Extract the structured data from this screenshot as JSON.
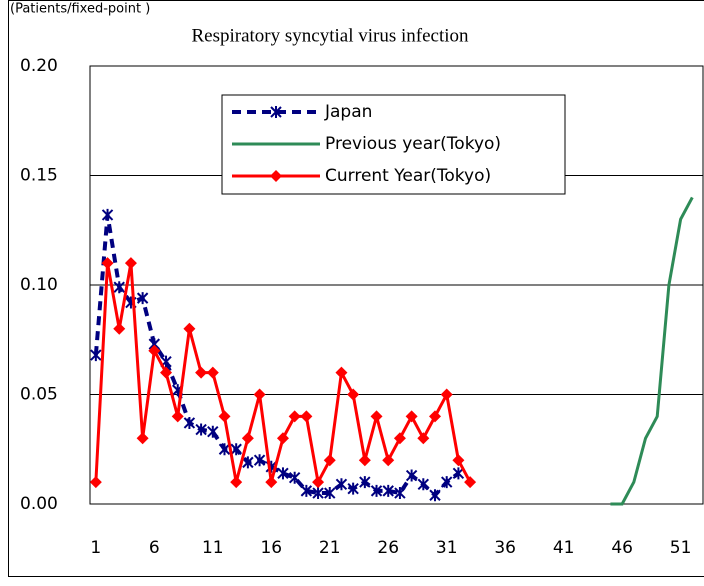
{
  "chart_data": {
    "type": "line",
    "title": "Respiratory syncytial virus infection",
    "y_label": "(Patients/fixed-point )",
    "x": [
      1,
      2,
      3,
      4,
      5,
      6,
      7,
      8,
      9,
      10,
      11,
      12,
      13,
      14,
      15,
      16,
      17,
      18,
      19,
      20,
      21,
      22,
      23,
      24,
      25,
      26,
      27,
      28,
      29,
      30,
      31,
      32,
      33,
      34,
      35,
      36,
      37,
      38,
      39,
      40,
      41,
      42,
      43,
      44,
      45,
      46,
      47,
      48,
      49,
      50,
      51,
      52
    ],
    "xlim": [
      0.5,
      53
    ],
    "xticks": [
      1,
      6,
      11,
      16,
      21,
      26,
      31,
      36,
      41,
      46,
      51
    ],
    "ylim": [
      0,
      0.2
    ],
    "yticks": [
      {
        "value": 0,
        "label": "0.00"
      },
      {
        "value": 0.05,
        "label": "0.05"
      },
      {
        "value": 0.1,
        "label": "0.10"
      },
      {
        "value": 0.15,
        "label": "0.15"
      },
      {
        "value": 0.2,
        "label": "0.20"
      }
    ],
    "grid": true,
    "series": [
      {
        "name": "Japan",
        "color": "#000080",
        "style": "dashed",
        "marker": "x",
        "values": [
          0.068,
          0.132,
          0.099,
          0.092,
          0.094,
          0.073,
          0.065,
          0.052,
          0.037,
          0.034,
          0.033,
          0.025,
          0.025,
          0.019,
          0.02,
          0.017,
          0.014,
          0.012,
          0.006,
          0.005,
          0.005,
          0.009,
          0.007,
          0.01,
          0.006,
          0.006,
          0.005,
          0.013,
          0.009,
          0.004,
          0.01,
          0.014,
          null,
          null,
          null,
          null,
          null,
          null,
          null,
          null,
          null,
          null,
          null,
          null,
          null,
          null,
          null,
          null,
          null,
          null,
          null,
          null
        ]
      },
      {
        "name": "Previous year(Tokyo)",
        "color": "#2e8b57",
        "style": "solid",
        "marker": "none",
        "values": [
          null,
          null,
          null,
          null,
          null,
          null,
          null,
          null,
          null,
          null,
          null,
          null,
          null,
          null,
          null,
          null,
          null,
          null,
          null,
          null,
          null,
          null,
          null,
          null,
          null,
          null,
          null,
          null,
          null,
          null,
          null,
          null,
          null,
          null,
          null,
          null,
          null,
          null,
          null,
          null,
          null,
          null,
          null,
          null,
          0,
          0,
          0.01,
          0.03,
          0.04,
          0.1,
          0.13,
          0.14
        ]
      },
      {
        "name": "Current Year(Tokyo)",
        "color": "#ff0000",
        "style": "solid",
        "marker": "diamond",
        "values": [
          0.01,
          0.11,
          0.08,
          0.11,
          0.03,
          0.07,
          0.06,
          0.04,
          0.08,
          0.06,
          0.06,
          0.04,
          0.01,
          0.03,
          0.05,
          0.01,
          0.03,
          0.04,
          0.04,
          0.01,
          0.02,
          0.06,
          0.05,
          0.02,
          0.04,
          0.02,
          0.03,
          0.04,
          0.03,
          0.04,
          0.05,
          0.02,
          0.01,
          null,
          null,
          null,
          null,
          null,
          null,
          null,
          null,
          null,
          null,
          null,
          null,
          null,
          null,
          null,
          null,
          null,
          null,
          null
        ]
      }
    ]
  }
}
